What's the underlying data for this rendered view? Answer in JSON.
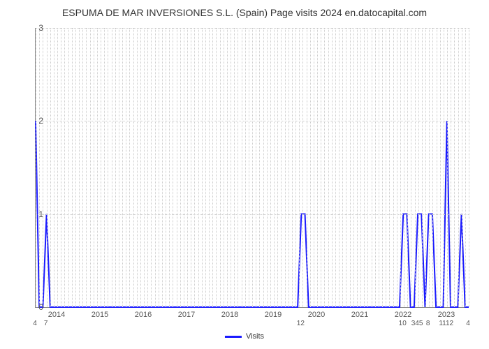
{
  "chart": {
    "type": "line",
    "title": "ESPUMA DE MAR INVERSIONES S.L. (Spain) Page visits 2024 en.datocapital.com",
    "title_fontsize": 14,
    "title_color": "#333333",
    "background_color": "#ffffff",
    "plot_border_color": "#888888",
    "grid_color": "#cccccc",
    "grid_style": "dotted",
    "line_color": "#1a1aff",
    "line_width": 2,
    "ylim": [
      0,
      3
    ],
    "ytick_step": 1,
    "yticks": [
      0,
      1,
      2,
      3
    ],
    "x_years": [
      2014,
      2015,
      2016,
      2017,
      2018,
      2019,
      2020,
      2021,
      2022,
      2023
    ],
    "x_n": 120,
    "points": [
      {
        "i": 0,
        "y": 2
      },
      {
        "i": 1,
        "y": 0
      },
      {
        "i": 3,
        "y": 1
      },
      {
        "i": 4,
        "y": 0
      },
      {
        "i": 72,
        "y": 0
      },
      {
        "i": 73,
        "y": 1
      },
      {
        "i": 74,
        "y": 1
      },
      {
        "i": 75,
        "y": 0
      },
      {
        "i": 100,
        "y": 0
      },
      {
        "i": 101,
        "y": 1
      },
      {
        "i": 102,
        "y": 1
      },
      {
        "i": 103,
        "y": 0
      },
      {
        "i": 105,
        "y": 1
      },
      {
        "i": 106,
        "y": 1
      },
      {
        "i": 107,
        "y": 0
      },
      {
        "i": 108,
        "y": 1
      },
      {
        "i": 109,
        "y": 1
      },
      {
        "i": 110,
        "y": 0
      },
      {
        "i": 113,
        "y": 2
      },
      {
        "i": 114,
        "y": 0
      },
      {
        "i": 117,
        "y": 1
      },
      {
        "i": 118,
        "y": 0
      },
      {
        "i": 119,
        "y": 0
      }
    ],
    "x_value_labels": [
      {
        "i": 0,
        "text": "4"
      },
      {
        "i": 3,
        "text": "7"
      },
      {
        "i": 73,
        "text": "12"
      },
      {
        "i": 101,
        "text": "10"
      },
      {
        "i": 105,
        "text": "345"
      },
      {
        "i": 108,
        "text": "8"
      },
      {
        "i": 113,
        "text": "1112"
      },
      {
        "i": 119,
        "text": "4"
      }
    ],
    "legend_label": "Visits",
    "legend_swatch_color": "#1a1aff"
  }
}
